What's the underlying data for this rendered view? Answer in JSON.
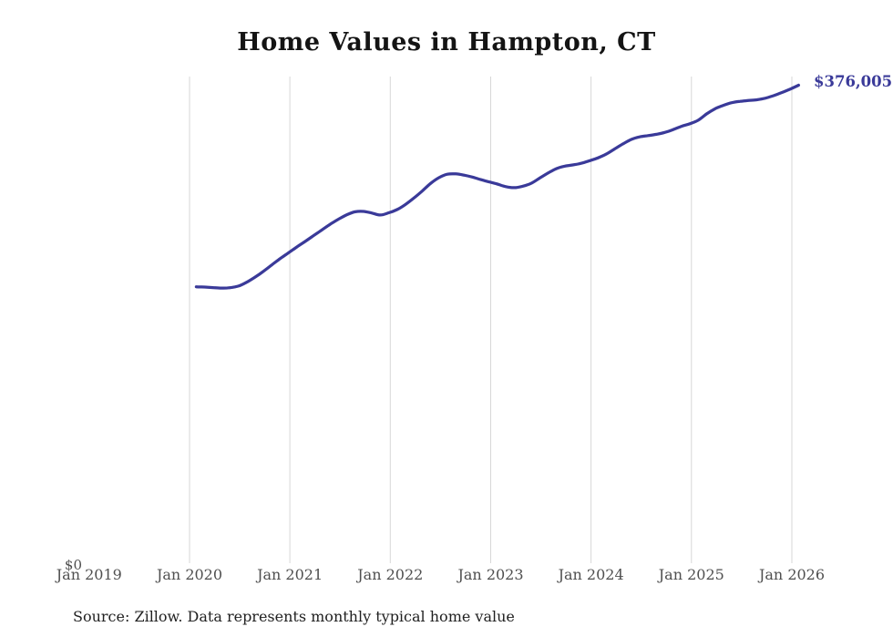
{
  "page": {
    "background_color": "#ffffff"
  },
  "chart": {
    "title": "Home Values in Hampton, CT",
    "end_label": "$376,005",
    "y_zero_label": "$0",
    "source_note": "Source: Zillow. Data represents monthly typical home value"
  },
  "chart_data": {
    "type": "line",
    "title": "Home Values in Hampton, CT",
    "series_name": "Monthly typical home value (Zillow)",
    "x_tick_labels": [
      "Jan 2019",
      "Jan 2020",
      "Jan 2021",
      "Jan 2022",
      "Jan 2023",
      "Jan 2024",
      "Jan 2025",
      "Jan 2026"
    ],
    "x_start": "2020-01",
    "x_end": "2026-01",
    "x_interval": "monthly",
    "point_count": 73,
    "values": [
      218000,
      217800,
      217400,
      217000,
      217300,
      218500,
      221500,
      225500,
      230000,
      235000,
      240000,
      244500,
      249200,
      253500,
      258000,
      262500,
      267000,
      271000,
      274500,
      276800,
      277100,
      275800,
      274300,
      276000,
      278500,
      282500,
      287500,
      293000,
      299000,
      303500,
      306200,
      306500,
      305500,
      304000,
      302000,
      300200,
      298500,
      296500,
      295700,
      296800,
      299000,
      303000,
      307000,
      310500,
      312500,
      313500,
      314800,
      316800,
      319000,
      322000,
      326000,
      330000,
      333500,
      335500,
      336500,
      337500,
      339000,
      341200,
      343800,
      345800,
      348600,
      353500,
      357500,
      360200,
      362300,
      363400,
      364000,
      364600,
      365800,
      367800,
      370300,
      373000,
      376005
    ],
    "latest_value": 376005,
    "latest_value_label": "$376,005",
    "ylim": [
      0,
      383000
    ],
    "y_axis_labels_visible": [
      "$0"
    ],
    "gridlines": "vertical-yearly-only",
    "gridline_years_with_line": [
      "Jan 2020",
      "Jan 2021",
      "Jan 2022",
      "Jan 2023",
      "Jan 2024",
      "Jan 2025",
      "Jan 2026"
    ],
    "legend": "none",
    "line_color": "#3a3a99",
    "gridline_color": "#d7d7d7",
    "axis_label_color": "#4f4f4f",
    "title_color": "#141414"
  }
}
